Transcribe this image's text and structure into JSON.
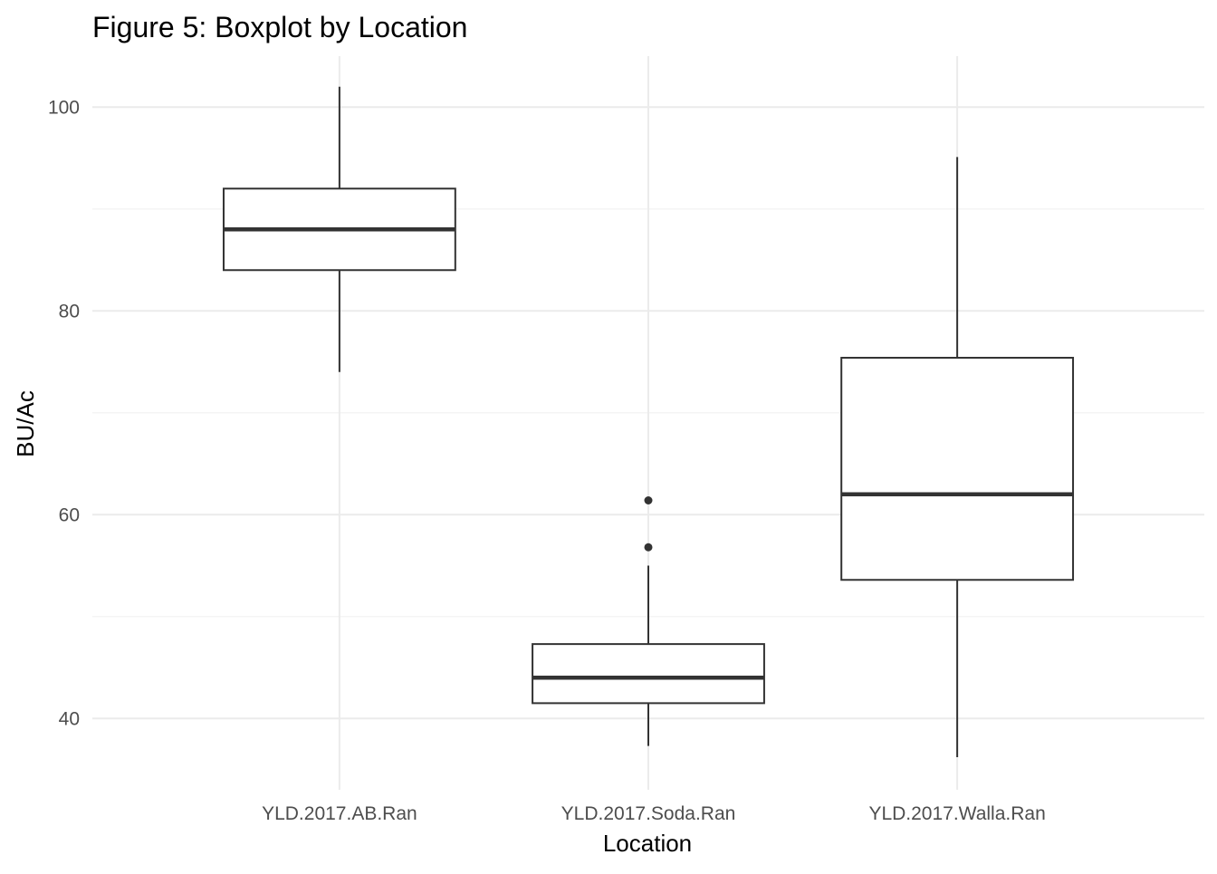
{
  "chart_data": {
    "type": "boxplot",
    "title": "Figure 5: Boxplot by Location",
    "xlabel": "Location",
    "ylabel": "BU/Ac",
    "ylim": [
      33,
      105
    ],
    "y_ticks": [
      40,
      60,
      80,
      100
    ],
    "y_tick_labels": [
      "40",
      "60",
      "80",
      "100"
    ],
    "y_minor_ticks": [
      50,
      70,
      90
    ],
    "grid": true,
    "legend": "none",
    "categories": [
      "YLD.2017.AB.Ran",
      "YLD.2017.Soda.Ran",
      "YLD.2017.Walla.Ran"
    ],
    "boxes": [
      {
        "category": "YLD.2017.AB.Ran",
        "min": 74,
        "q1": 84,
        "median": 88,
        "q3": 92,
        "max": 102,
        "outliers": []
      },
      {
        "category": "YLD.2017.Soda.Ran",
        "min": 37.3,
        "q1": 41.5,
        "median": 44,
        "q3": 47.3,
        "max": 55,
        "outliers": [
          56.8,
          61.4
        ]
      },
      {
        "category": "YLD.2017.Walla.Ran",
        "min": 36.2,
        "q1": 53.6,
        "median": 62,
        "q3": 75.4,
        "max": 95.1,
        "outliers": []
      }
    ],
    "colors": {
      "box_line": "#333333",
      "box_fill": "#ffffff",
      "grid_major": "#ebebeb",
      "grid_minor": "#f2f2f2",
      "tick_text": "#4d4d4d"
    }
  }
}
